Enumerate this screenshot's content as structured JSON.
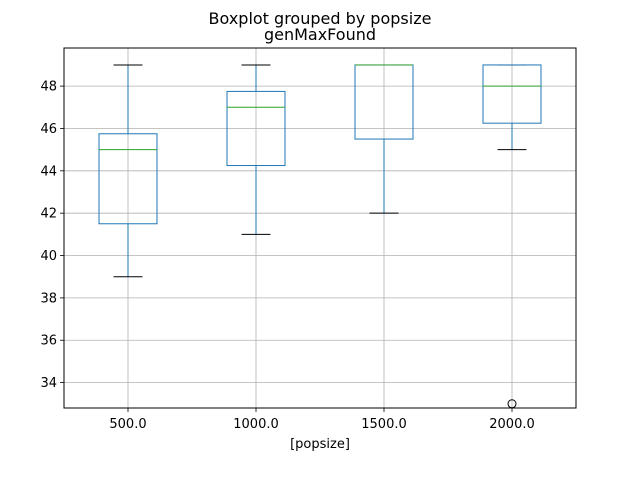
{
  "chart_data": {
    "type": "boxplot",
    "suptitle": "Boxplot grouped by popsize",
    "title": "genMaxFound",
    "xlabel": "[popsize]",
    "ylabel": "",
    "categories": [
      "500.0",
      "1000.0",
      "1500.0",
      "2000.0"
    ],
    "ylim": [
      32.8,
      49.8
    ],
    "yticks": [
      34,
      36,
      38,
      40,
      42,
      44,
      46,
      48
    ],
    "grid": true,
    "box_color": "#1f77b4",
    "median_color": "#2ca02c",
    "boxes": [
      {
        "category": "500.0",
        "whislo": 39,
        "q1": 41.5,
        "med": 45,
        "q3": 45.75,
        "whishi": 49,
        "fliers": []
      },
      {
        "category": "1000.0",
        "whislo": 41,
        "q1": 44.25,
        "med": 47,
        "q3": 47.75,
        "whishi": 49,
        "fliers": []
      },
      {
        "category": "1500.0",
        "whislo": 42,
        "q1": 45.5,
        "med": 49,
        "q3": 49,
        "whishi": 49,
        "fliers": []
      },
      {
        "category": "2000.0",
        "whislo": 45,
        "q1": 46.25,
        "med": 48,
        "q3": 49,
        "whishi": 49,
        "fliers": [
          33
        ]
      }
    ]
  }
}
